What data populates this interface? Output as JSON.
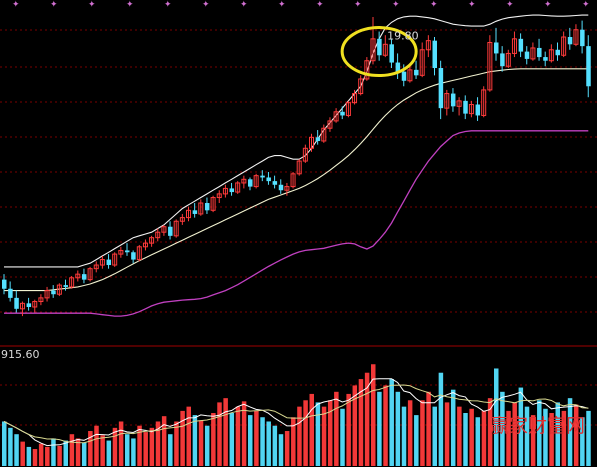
{
  "chart_data": [
    {
      "type": "candlestick",
      "panel": "price",
      "peak_label": "19.80",
      "grid": true,
      "colors": {
        "up": "#ff3b3b",
        "down": "#55e0ff",
        "upper_band": "#f2f2f2",
        "mid_band": "#f2f2d0",
        "lower_band": "#c040c0",
        "highlight": "#f0e020",
        "grid": "#7a0000"
      },
      "ylim": [
        11.0,
        20.1
      ],
      "x_count": 96,
      "candles": [
        [
          12.6,
          12.75,
          12.2,
          12.35
        ],
        [
          12.35,
          12.55,
          12.0,
          12.1
        ],
        [
          12.1,
          12.3,
          11.7,
          11.8
        ],
        [
          11.8,
          12.0,
          11.6,
          11.95
        ],
        [
          11.95,
          12.1,
          11.75,
          11.85
        ],
        [
          11.85,
          12.05,
          11.7,
          12.0
        ],
        [
          12.0,
          12.2,
          11.9,
          12.1
        ],
        [
          12.1,
          12.4,
          12.0,
          12.3
        ],
        [
          12.3,
          12.45,
          12.1,
          12.2
        ],
        [
          12.2,
          12.5,
          12.15,
          12.45
        ],
        [
          12.45,
          12.6,
          12.3,
          12.4
        ],
        [
          12.4,
          12.7,
          12.35,
          12.65
        ],
        [
          12.65,
          12.85,
          12.55,
          12.75
        ],
        [
          12.75,
          12.9,
          12.5,
          12.6
        ],
        [
          12.6,
          12.95,
          12.55,
          12.9
        ],
        [
          12.9,
          13.1,
          12.8,
          13.0
        ],
        [
          13.0,
          13.25,
          12.9,
          13.15
        ],
        [
          13.15,
          13.3,
          12.9,
          13.0
        ],
        [
          13.0,
          13.35,
          12.95,
          13.3
        ],
        [
          13.3,
          13.5,
          13.2,
          13.4
        ],
        [
          13.4,
          13.6,
          13.25,
          13.35
        ],
        [
          13.35,
          13.4,
          13.05,
          13.15
        ],
        [
          13.15,
          13.55,
          13.1,
          13.5
        ],
        [
          13.5,
          13.7,
          13.4,
          13.6
        ],
        [
          13.6,
          13.8,
          13.5,
          13.75
        ],
        [
          13.75,
          14.0,
          13.65,
          13.9
        ],
        [
          13.9,
          14.1,
          13.8,
          14.05
        ],
        [
          14.05,
          14.2,
          13.7,
          13.8
        ],
        [
          13.8,
          14.25,
          13.75,
          14.2
        ],
        [
          14.2,
          14.4,
          14.1,
          14.3
        ],
        [
          14.3,
          14.6,
          14.2,
          14.5
        ],
        [
          14.5,
          14.7,
          14.3,
          14.4
        ],
        [
          14.4,
          14.8,
          14.35,
          14.7
        ],
        [
          14.7,
          14.85,
          14.4,
          14.5
        ],
        [
          14.5,
          14.9,
          14.45,
          14.85
        ],
        [
          14.85,
          15.05,
          14.7,
          14.95
        ],
        [
          14.95,
          15.2,
          14.85,
          15.1
        ],
        [
          15.1,
          15.25,
          14.9,
          15.0
        ],
        [
          15.0,
          15.3,
          14.95,
          15.25
        ],
        [
          15.25,
          15.45,
          15.1,
          15.35
        ],
        [
          15.35,
          15.4,
          15.05,
          15.15
        ],
        [
          15.15,
          15.5,
          15.1,
          15.45
        ],
        [
          15.45,
          15.6,
          15.3,
          15.4
        ],
        [
          15.4,
          15.55,
          15.2,
          15.3
        ],
        [
          15.3,
          15.45,
          15.1,
          15.2
        ],
        [
          15.2,
          15.35,
          14.95,
          15.05
        ],
        [
          15.05,
          15.25,
          14.9,
          15.15
        ],
        [
          15.15,
          15.55,
          15.1,
          15.5
        ],
        [
          15.5,
          15.9,
          15.45,
          15.85
        ],
        [
          15.85,
          16.3,
          15.8,
          16.2
        ],
        [
          16.2,
          16.6,
          16.1,
          16.5
        ],
        [
          16.5,
          16.7,
          16.3,
          16.4
        ],
        [
          16.4,
          16.85,
          16.35,
          16.75
        ],
        [
          16.75,
          17.05,
          16.65,
          16.95
        ],
        [
          16.95,
          17.3,
          16.9,
          17.2
        ],
        [
          17.2,
          17.35,
          17.0,
          17.1
        ],
        [
          17.1,
          17.5,
          17.05,
          17.45
        ],
        [
          17.45,
          17.8,
          17.4,
          17.7
        ],
        [
          17.7,
          18.2,
          17.65,
          18.1
        ],
        [
          18.1,
          18.7,
          18.05,
          18.6
        ],
        [
          18.6,
          19.8,
          18.5,
          19.2
        ],
        [
          19.2,
          19.4,
          18.6,
          18.75
        ],
        [
          18.75,
          19.3,
          18.7,
          19.05
        ],
        [
          19.05,
          19.2,
          18.4,
          18.55
        ],
        [
          18.55,
          18.8,
          18.1,
          18.3
        ],
        [
          18.3,
          18.5,
          17.9,
          18.05
        ],
        [
          18.05,
          18.45,
          18.0,
          18.35
        ],
        [
          18.35,
          18.6,
          18.1,
          18.2
        ],
        [
          18.2,
          19.1,
          18.15,
          18.9
        ],
        [
          18.9,
          19.3,
          18.7,
          19.15
        ],
        [
          19.15,
          19.25,
          18.2,
          18.4
        ],
        [
          18.4,
          18.6,
          17.0,
          17.3
        ],
        [
          17.3,
          17.8,
          17.1,
          17.7
        ],
        [
          17.7,
          17.85,
          17.2,
          17.35
        ],
        [
          17.35,
          17.6,
          17.1,
          17.5
        ],
        [
          17.5,
          17.65,
          17.0,
          17.15
        ],
        [
          17.15,
          17.5,
          17.05,
          17.4
        ],
        [
          17.4,
          17.6,
          16.95,
          17.1
        ],
        [
          17.1,
          17.9,
          17.05,
          17.8
        ],
        [
          17.8,
          19.3,
          17.75,
          19.1
        ],
        [
          19.1,
          19.5,
          18.6,
          18.8
        ],
        [
          18.8,
          19.0,
          18.3,
          18.45
        ],
        [
          18.45,
          18.9,
          18.4,
          18.8
        ],
        [
          18.8,
          19.4,
          18.7,
          19.2
        ],
        [
          19.2,
          19.35,
          18.7,
          18.85
        ],
        [
          18.85,
          19.0,
          18.5,
          18.65
        ],
        [
          18.65,
          19.1,
          18.6,
          18.95
        ],
        [
          18.95,
          19.2,
          18.6,
          18.7
        ],
        [
          18.7,
          18.85,
          18.45,
          18.6
        ],
        [
          18.6,
          19.05,
          18.55,
          18.9
        ],
        [
          18.9,
          19.1,
          18.6,
          18.75
        ],
        [
          18.75,
          19.4,
          18.7,
          19.25
        ],
        [
          19.25,
          19.5,
          18.9,
          19.05
        ],
        [
          19.05,
          19.6,
          19.0,
          19.45
        ],
        [
          19.45,
          19.7,
          18.8,
          19.0
        ],
        [
          19.0,
          19.3,
          17.6,
          17.9
        ]
      ],
      "upper_band": [
        12.95,
        12.95,
        12.95,
        12.95,
        12.95,
        12.95,
        12.95,
        12.95,
        12.95,
        12.95,
        12.95,
        12.95,
        12.95,
        13.0,
        13.05,
        13.15,
        13.25,
        13.35,
        13.45,
        13.55,
        13.65,
        13.75,
        13.8,
        13.85,
        13.9,
        14.0,
        14.1,
        14.25,
        14.4,
        14.55,
        14.65,
        14.75,
        14.85,
        14.95,
        15.05,
        15.15,
        15.25,
        15.35,
        15.45,
        15.55,
        15.65,
        15.75,
        15.85,
        15.95,
        16.0,
        16.0,
        15.95,
        15.9,
        15.9,
        16.0,
        16.2,
        16.45,
        16.7,
        16.9,
        17.1,
        17.3,
        17.5,
        17.7,
        17.9,
        18.3,
        18.8,
        19.2,
        19.5,
        19.65,
        19.75,
        19.8,
        19.82,
        19.82,
        19.8,
        19.78,
        19.75,
        19.7,
        19.65,
        19.6,
        19.58,
        19.56,
        19.55,
        19.55,
        19.55,
        19.6,
        19.68,
        19.74,
        19.78,
        19.8,
        19.82,
        19.84,
        19.85,
        19.85,
        19.84,
        19.83,
        19.82,
        19.82,
        19.83,
        19.84,
        19.85,
        19.85
      ],
      "mid_band": [
        12.3,
        12.3,
        12.3,
        12.3,
        12.3,
        12.3,
        12.3,
        12.3,
        12.32,
        12.34,
        12.36,
        12.38,
        12.4,
        12.44,
        12.48,
        12.54,
        12.6,
        12.68,
        12.76,
        12.85,
        12.94,
        13.03,
        13.12,
        13.2,
        13.28,
        13.36,
        13.44,
        13.52,
        13.6,
        13.68,
        13.76,
        13.84,
        13.92,
        14.0,
        14.08,
        14.16,
        14.24,
        14.32,
        14.4,
        14.48,
        14.56,
        14.64,
        14.72,
        14.8,
        14.86,
        14.92,
        14.98,
        15.04,
        15.1,
        15.18,
        15.27,
        15.37,
        15.48,
        15.6,
        15.73,
        15.86,
        16.0,
        16.16,
        16.33,
        16.52,
        16.72,
        16.92,
        17.1,
        17.26,
        17.4,
        17.52,
        17.62,
        17.72,
        17.8,
        17.87,
        17.93,
        17.98,
        18.02,
        18.06,
        18.1,
        18.14,
        18.18,
        18.22,
        18.26,
        18.3,
        18.32,
        18.34,
        18.36,
        18.37,
        18.38,
        18.38,
        18.38,
        18.38,
        18.38,
        18.38,
        18.38,
        18.38,
        18.38,
        18.38,
        18.38,
        18.38
      ],
      "lower_band": [
        11.68,
        11.68,
        11.68,
        11.68,
        11.68,
        11.68,
        11.68,
        11.68,
        11.68,
        11.68,
        11.68,
        11.68,
        11.68,
        11.68,
        11.68,
        11.66,
        11.64,
        11.62,
        11.6,
        11.6,
        11.62,
        11.66,
        11.72,
        11.8,
        11.88,
        11.94,
        11.98,
        12.0,
        12.02,
        12.04,
        12.05,
        12.06,
        12.08,
        12.12,
        12.18,
        12.24,
        12.3,
        12.38,
        12.46,
        12.56,
        12.66,
        12.76,
        12.86,
        12.96,
        13.05,
        13.14,
        13.22,
        13.3,
        13.36,
        13.4,
        13.42,
        13.44,
        13.46,
        13.5,
        13.54,
        13.58,
        13.6,
        13.58,
        13.5,
        13.44,
        13.52,
        13.7,
        13.9,
        14.15,
        14.45,
        14.75,
        15.05,
        15.35,
        15.6,
        15.85,
        16.05,
        16.25,
        16.4,
        16.55,
        16.62,
        16.66,
        16.68,
        16.68,
        16.68,
        16.68,
        16.68,
        16.68,
        16.68,
        16.68,
        16.68,
        16.68,
        16.68,
        16.68,
        16.68,
        16.68,
        16.68,
        16.68,
        16.68,
        16.68,
        16.68,
        16.68
      ],
      "highlight_candle_index": 61
    },
    {
      "type": "bar",
      "panel": "volume",
      "y_axis_label": "915.60",
      "ylim": [
        0,
        1000
      ],
      "values": [
        420,
        360,
        300,
        230,
        180,
        160,
        210,
        180,
        260,
        190,
        240,
        300,
        260,
        220,
        330,
        380,
        290,
        240,
        360,
        420,
        300,
        260,
        380,
        320,
        360,
        420,
        470,
        300,
        420,
        520,
        560,
        480,
        430,
        380,
        500,
        600,
        640,
        500,
        560,
        610,
        480,
        520,
        460,
        420,
        380,
        300,
        330,
        460,
        560,
        620,
        680,
        600,
        560,
        620,
        700,
        540,
        680,
        760,
        820,
        880,
        960,
        700,
        760,
        820,
        700,
        560,
        620,
        480,
        620,
        700,
        560,
        880,
        600,
        720,
        560,
        500,
        540,
        460,
        520,
        640,
        920,
        700,
        520,
        600,
        740,
        560,
        480,
        620,
        540,
        500,
        600,
        520,
        640,
        580,
        460,
        520
      ]
    }
  ],
  "watermark": "赢家财富网"
}
